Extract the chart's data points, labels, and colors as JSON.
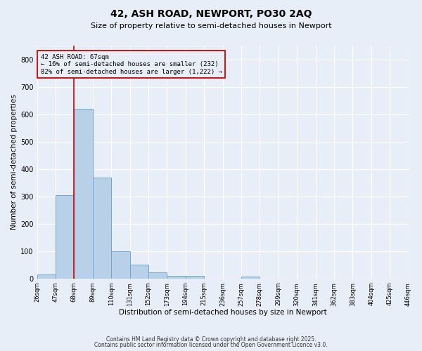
{
  "title": "42, ASH ROAD, NEWPORT, PO30 2AQ",
  "subtitle": "Size of property relative to semi-detached houses in Newport",
  "xlabel": "Distribution of semi-detached houses by size in Newport",
  "ylabel": "Number of semi-detached properties",
  "footer1": "Contains HM Land Registry data © Crown copyright and database right 2025.",
  "footer2": "Contains public sector information licensed under the Open Government Licence v3.0.",
  "bar_edges": [
    26,
    47,
    68,
    89,
    110,
    131,
    152,
    173,
    194,
    215,
    236,
    257,
    278,
    299,
    320,
    341,
    362,
    383,
    404,
    425,
    446
  ],
  "bar_heights": [
    15,
    305,
    620,
    368,
    100,
    50,
    22,
    10,
    10,
    0,
    0,
    8,
    0,
    0,
    0,
    0,
    0,
    0,
    0,
    0
  ],
  "bar_color": "#b8d0e8",
  "bar_edgecolor": "#6fa8d0",
  "bg_color": "#e8eef8",
  "grid_color": "#ffffff",
  "vline_x": 68,
  "vline_color": "#cc0000",
  "annotation_line1": "42 ASH ROAD: 67sqm",
  "annotation_line2": "← 16% of semi-detached houses are smaller (232)",
  "annotation_line3": "82% of semi-detached houses are larger (1,222) →",
  "annotation_box_color": "#cc0000",
  "ylim": [
    0,
    850
  ],
  "xlim": [
    26,
    446
  ],
  "tick_labels": [
    "26sqm",
    "47sqm",
    "68sqm",
    "89sqm",
    "110sqm",
    "131sqm",
    "152sqm",
    "173sqm",
    "194sqm",
    "215sqm",
    "236sqm",
    "257sqm",
    "278sqm",
    "299sqm",
    "320sqm",
    "341sqm",
    "362sqm",
    "383sqm",
    "404sqm",
    "425sqm",
    "446sqm"
  ]
}
